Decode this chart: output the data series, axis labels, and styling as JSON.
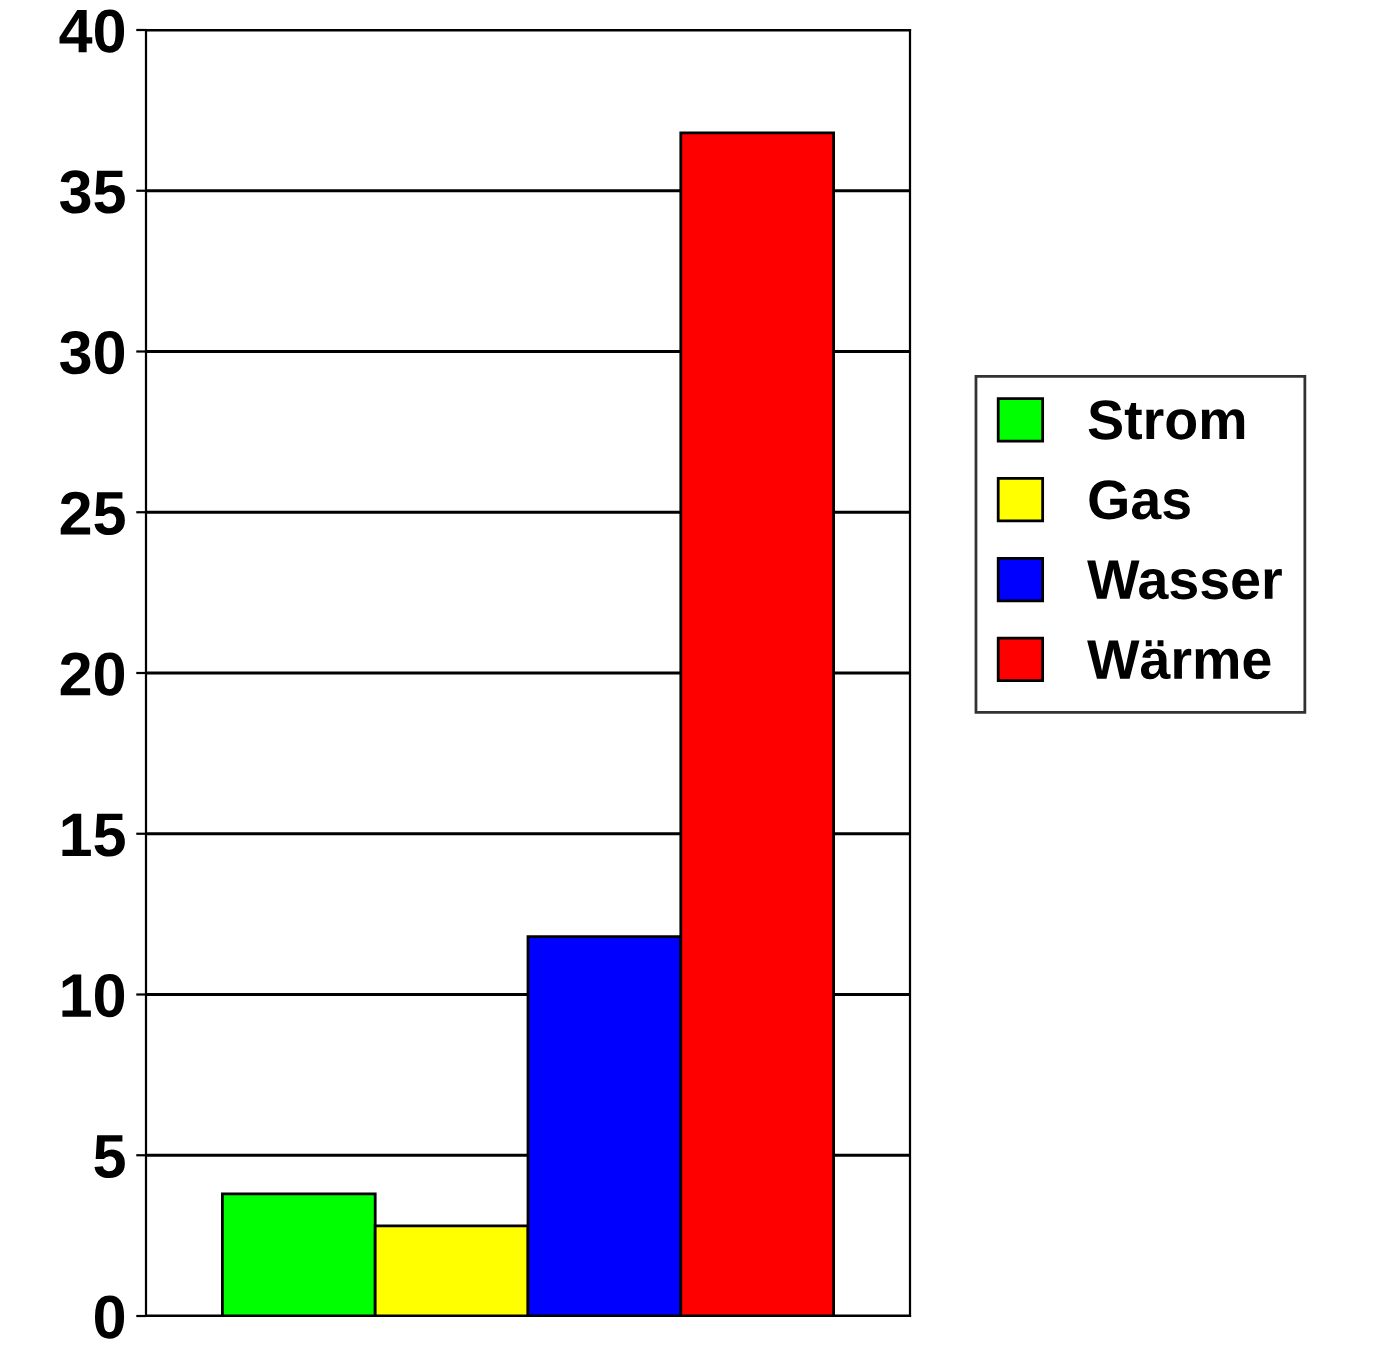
{
  "chart_data": {
    "type": "bar",
    "categories": [
      null
    ],
    "series": [
      {
        "name": "Strom",
        "color": "#00ff00",
        "values": [
          3.8
        ]
      },
      {
        "name": "Gas",
        "color": "#ffff00",
        "values": [
          2.8
        ]
      },
      {
        "name": "Wasser",
        "color": "#0000ff",
        "values": [
          11.8
        ]
      },
      {
        "name": "Wärme",
        "color": "#ff0000",
        "values": [
          36.8
        ]
      }
    ],
    "ylim": [
      0,
      40
    ],
    "yticks": [
      0,
      5,
      10,
      15,
      20,
      25,
      30,
      35,
      40
    ],
    "grid": "y",
    "legend": "right"
  }
}
